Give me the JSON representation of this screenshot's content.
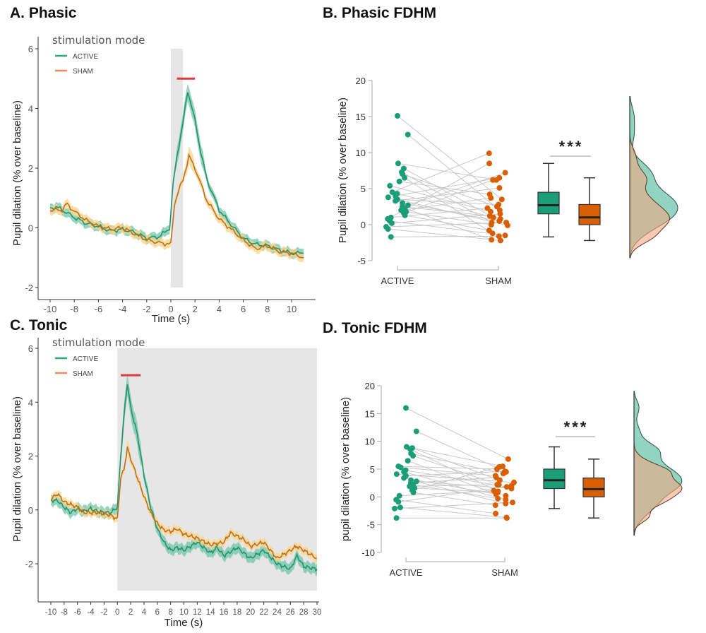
{
  "colors": {
    "active": "#1b9e77",
    "sham": "#d95f02",
    "active_line": "#23946c",
    "sham_line": "#b8711f",
    "active_band": "#66c2a5",
    "sham_band": "#fdd38a",
    "window": "#e6e6e6",
    "significance": "#e0393e",
    "pair_line": "#c8c8c8",
    "density_active": "#7fcdb5",
    "density_sham": "#f4a582"
  },
  "chart_data": [
    {
      "type": "line",
      "title": "A. Phasic",
      "xlabel": "Time (s)",
      "ylabel": "Pupil dilation (% over baseline)",
      "xlim": [
        -10,
        11
      ],
      "ylim": [
        -2,
        6
      ],
      "xticks": [
        -10,
        -8,
        -6,
        -4,
        -2,
        0,
        2,
        4,
        6,
        8,
        10
      ],
      "yticks": [
        -2,
        0,
        2,
        4,
        6
      ],
      "grid": false,
      "legend": {
        "title": "stimulation mode",
        "position": "top-left",
        "items": [
          "ACTIVE",
          "SHAM"
        ]
      },
      "stimulation_window": {
        "x": [
          0,
          1
        ],
        "y": [
          -2,
          6
        ]
      },
      "significance_bar": {
        "x": [
          0.5,
          2
        ],
        "y": 5
      },
      "series": [
        {
          "name": "ACTIVE",
          "ci": 0.15,
          "points": [
            [
              -10,
              0.65
            ],
            [
              -9.5,
              0.7
            ],
            [
              -9,
              0.6
            ],
            [
              -8,
              0.35
            ],
            [
              -7,
              0.15
            ],
            [
              -6,
              0.05
            ],
            [
              -5,
              -0.1
            ],
            [
              -4,
              -0.05
            ],
            [
              -3,
              -0.15
            ],
            [
              -2,
              -0.35
            ],
            [
              -1,
              -0.3
            ],
            [
              -0.5,
              -0.15
            ],
            [
              -0.1,
              0
            ],
            [
              0.2,
              1.5
            ],
            [
              0.5,
              2.4
            ],
            [
              1,
              3.5
            ],
            [
              1.4,
              4.6
            ],
            [
              2,
              3.6
            ],
            [
              2.5,
              2.5
            ],
            [
              3,
              1.6
            ],
            [
              4,
              0.6
            ],
            [
              5,
              0.1
            ],
            [
              6,
              -0.35
            ],
            [
              7,
              -0.55
            ],
            [
              8,
              -0.6
            ],
            [
              9,
              -0.75
            ],
            [
              10,
              -0.85
            ],
            [
              11,
              -0.85
            ]
          ]
        },
        {
          "name": "SHAM",
          "ci": 0.15,
          "points": [
            [
              -10,
              0.6
            ],
            [
              -9,
              0.6
            ],
            [
              -8.6,
              0.8
            ],
            [
              -8,
              0.55
            ],
            [
              -7,
              0.25
            ],
            [
              -6,
              0.05
            ],
            [
              -5,
              -0.05
            ],
            [
              -4,
              0
            ],
            [
              -3,
              -0.2
            ],
            [
              -2,
              -0.4
            ],
            [
              -1,
              -0.5
            ],
            [
              0,
              -0.55
            ],
            [
              0.3,
              0.8
            ],
            [
              0.6,
              1.2
            ],
            [
              1,
              1.6
            ],
            [
              1.5,
              2.4
            ],
            [
              2,
              2.0
            ],
            [
              3,
              0.9
            ],
            [
              4,
              0.3
            ],
            [
              5,
              -0.05
            ],
            [
              6,
              -0.4
            ],
            [
              7,
              -0.7
            ],
            [
              8,
              -0.6
            ],
            [
              9,
              -0.8
            ],
            [
              10,
              -0.85
            ],
            [
              11,
              -1.0
            ]
          ]
        }
      ]
    },
    {
      "type": "scatter",
      "title": "B. Phasic FDHM",
      "ylabel": "Pupil dilation (% over baseline)",
      "ylim": [
        -5,
        20
      ],
      "yticks": [
        -5,
        0,
        5,
        10,
        15,
        20
      ],
      "categories": [
        "ACTIVE",
        "SHAM"
      ],
      "significance": "***",
      "pairs": [
        [
          15.1,
          3.5
        ],
        [
          12.5,
          2.0
        ],
        [
          8.5,
          6.2
        ],
        [
          7.8,
          1.0
        ],
        [
          7.3,
          0.3
        ],
        [
          7.0,
          2.5
        ],
        [
          6.5,
          -1.2
        ],
        [
          6.0,
          4.2
        ],
        [
          5.4,
          1.8
        ],
        [
          4.5,
          9.9
        ],
        [
          4.3,
          0.8
        ],
        [
          4.0,
          6.5
        ],
        [
          3.8,
          -0.1
        ],
        [
          3.5,
          2.8
        ],
        [
          3.3,
          5.1
        ],
        [
          3.0,
          0.5
        ],
        [
          2.7,
          7.2
        ],
        [
          2.5,
          1.2
        ],
        [
          2.3,
          -2.1
        ],
        [
          2.0,
          3.7
        ],
        [
          1.8,
          0.0
        ],
        [
          1.6,
          6.2
        ],
        [
          1.3,
          -0.8
        ],
        [
          1.0,
          2.3
        ],
        [
          0.8,
          8.5
        ],
        [
          0.5,
          -1.5
        ],
        [
          0.2,
          1.5
        ],
        [
          -0.3,
          0.3
        ],
        [
          -0.6,
          -2.2
        ],
        [
          -1.7,
          -1.6
        ]
      ],
      "boxes": [
        {
          "name": "ACTIVE",
          "min": -1.7,
          "q1": 1.5,
          "median": 2.7,
          "q3": 4.5,
          "max": 8.5
        },
        {
          "name": "SHAM",
          "min": -2.2,
          "q1": 0.0,
          "median": 1.0,
          "q3": 2.8,
          "max": 6.5
        }
      ]
    },
    {
      "type": "line",
      "title": "C. Tonic",
      "xlabel": "Time (s)",
      "ylabel": "Pupil dilation (% over baseline)",
      "xlim": [
        -10,
        30
      ],
      "ylim": [
        -3,
        6
      ],
      "xticks": [
        -10,
        -8,
        -6,
        -4,
        -2,
        0,
        2,
        4,
        6,
        8,
        10,
        12,
        14,
        16,
        18,
        20,
        22,
        24,
        26,
        28,
        30
      ],
      "yticks": [
        -2,
        0,
        2,
        4,
        6
      ],
      "grid": false,
      "legend": {
        "title": "stimulation mode",
        "position": "top-left",
        "items": [
          "ACTIVE",
          "SHAM"
        ]
      },
      "stimulation_window": {
        "x": [
          0,
          30
        ],
        "y": [
          -3,
          6
        ]
      },
      "significance_bar": {
        "x": [
          0.5,
          3.5
        ],
        "y": 5
      },
      "series": [
        {
          "name": "ACTIVE",
          "ci": 0.2,
          "points": [
            [
              -10,
              0.35
            ],
            [
              -9,
              0.35
            ],
            [
              -8,
              0.1
            ],
            [
              -7,
              -0.1
            ],
            [
              -6,
              0.05
            ],
            [
              -5,
              -0.05
            ],
            [
              -4,
              0.05
            ],
            [
              -3,
              -0.05
            ],
            [
              -2,
              -0.1
            ],
            [
              -1,
              -0.1
            ],
            [
              0,
              0.1
            ],
            [
              0.5,
              2
            ],
            [
              1,
              3.5
            ],
            [
              1.5,
              4.7
            ],
            [
              2,
              3.8
            ],
            [
              3,
              2.8
            ],
            [
              4,
              1.3
            ],
            [
              5,
              0.1
            ],
            [
              6,
              -0.7
            ],
            [
              7,
              -1.2
            ],
            [
              8,
              -1.5
            ],
            [
              9,
              -1.4
            ],
            [
              10,
              -1.5
            ],
            [
              12,
              -1.2
            ],
            [
              14,
              -1.6
            ],
            [
              15,
              -1.4
            ],
            [
              16,
              -1.7
            ],
            [
              18,
              -1.4
            ],
            [
              20,
              -1.8
            ],
            [
              22,
              -1.5
            ],
            [
              24,
              -2.0
            ],
            [
              26,
              -2.2
            ],
            [
              27,
              -1.7
            ],
            [
              28,
              -2.1
            ],
            [
              30,
              -2.2
            ]
          ]
        },
        {
          "name": "SHAM",
          "ci": 0.15,
          "points": [
            [
              -10,
              0.4
            ],
            [
              -9,
              0.6
            ],
            [
              -8,
              0.3
            ],
            [
              -6,
              0.1
            ],
            [
              -5,
              -0.1
            ],
            [
              -3,
              -0.1
            ],
            [
              -1,
              -0.2
            ],
            [
              0,
              -0.35
            ],
            [
              0.5,
              1.2
            ],
            [
              1,
              1.5
            ],
            [
              1.5,
              2.3
            ],
            [
              2,
              1.9
            ],
            [
              3,
              1.2
            ],
            [
              4,
              0.5
            ],
            [
              5,
              -0.1
            ],
            [
              6,
              -0.5
            ],
            [
              7,
              -0.75
            ],
            [
              8,
              -0.8
            ],
            [
              9,
              -0.7
            ],
            [
              10,
              -0.9
            ],
            [
              12,
              -1.05
            ],
            [
              14,
              -1.3
            ],
            [
              16,
              -1.2
            ],
            [
              17,
              -0.85
            ],
            [
              19,
              -1.1
            ],
            [
              20,
              -1.35
            ],
            [
              22,
              -1.2
            ],
            [
              24,
              -1.8
            ],
            [
              26,
              -1.5
            ],
            [
              27,
              -1.35
            ],
            [
              30,
              -1.8
            ]
          ]
        }
      ]
    },
    {
      "type": "scatter",
      "title": "D. Tonic FDHM",
      "ylabel": "pupil dilation (% over baseline)",
      "ylim": [
        -10,
        20
      ],
      "yticks": [
        -10,
        -5,
        0,
        5,
        10,
        15,
        20
      ],
      "categories": [
        "ACTIVE",
        "SHAM"
      ],
      "significance": "***",
      "pairs": [
        [
          16,
          6.8
        ],
        [
          11.8,
          4.5
        ],
        [
          9,
          5.5
        ],
        [
          8.8,
          3.0
        ],
        [
          8.6,
          1.0
        ],
        [
          7.8,
          4.2
        ],
        [
          7.4,
          2.2
        ],
        [
          6.5,
          0.5
        ],
        [
          5.5,
          5.0
        ],
        [
          5.3,
          3.8
        ],
        [
          4.8,
          1.8
        ],
        [
          4.5,
          -0.5
        ],
        [
          4.1,
          2.6
        ],
        [
          3.8,
          4.6
        ],
        [
          3.4,
          0.2
        ],
        [
          3.0,
          -1.2
        ],
        [
          2.8,
          1.5
        ],
        [
          2.5,
          3.5
        ],
        [
          2.2,
          -0.3
        ],
        [
          1.9,
          2.2
        ],
        [
          1.6,
          0.8
        ],
        [
          1.2,
          5.4
        ],
        [
          0.8,
          -1.5
        ],
        [
          0.2,
          1.1
        ],
        [
          -0.5,
          -3.0
        ],
        [
          -0.9,
          2.0
        ],
        [
          -1.9,
          -3.7
        ],
        [
          -2.1,
          -1.0
        ],
        [
          -3.8,
          -3.8
        ]
      ],
      "boxes": [
        {
          "name": "ACTIVE",
          "min": -2.1,
          "q1": 1.5,
          "median": 3.0,
          "q3": 5.0,
          "max": 9.0
        },
        {
          "name": "SHAM",
          "min": -3.8,
          "q1": 0.0,
          "median": 1.4,
          "q3": 3.4,
          "max": 6.8
        }
      ]
    }
  ]
}
